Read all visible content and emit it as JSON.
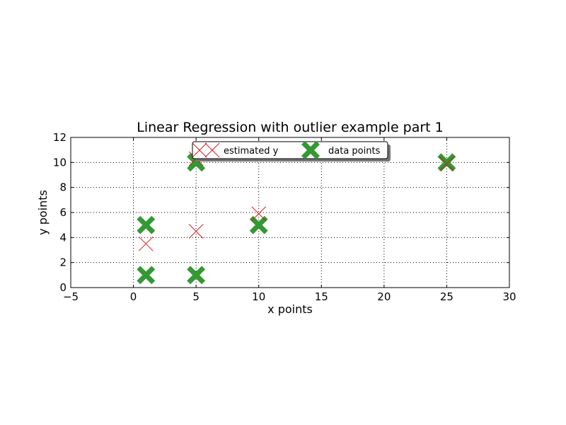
{
  "chart_data": {
    "type": "scatter",
    "title": "Linear Regression with outlier example part 1",
    "xlabel": "x points",
    "ylabel": "y points",
    "xlim": [
      -5,
      30
    ],
    "ylim": [
      0,
      12
    ],
    "xticks": [
      -5,
      0,
      5,
      10,
      15,
      20,
      25,
      30
    ],
    "xtick_labels": [
      "−5",
      "0",
      "5",
      "10",
      "15",
      "20",
      "25",
      "30"
    ],
    "yticks": [
      0,
      2,
      4,
      6,
      8,
      10,
      12
    ],
    "ytick_labels": [
      "0",
      "2",
      "4",
      "6",
      "8",
      "10",
      "12"
    ],
    "grid": true,
    "legend": {
      "placement": "top-center",
      "ncol": 2
    },
    "series": [
      {
        "name": "estimated y",
        "marker": "x",
        "color": "#d62020",
        "points": [
          {
            "x": 1,
            "y": 3.5
          },
          {
            "x": 5,
            "y": 4.5
          },
          {
            "x": 5,
            "y": 10.3
          },
          {
            "x": 10,
            "y": 5.9
          },
          {
            "x": 25,
            "y": 9.9
          }
        ]
      },
      {
        "name": "data points",
        "marker": "X",
        "color": "#339933",
        "points": [
          {
            "x": 1,
            "y": 1
          },
          {
            "x": 1,
            "y": 5
          },
          {
            "x": 5,
            "y": 1
          },
          {
            "x": 5,
            "y": 10
          },
          {
            "x": 10,
            "y": 5
          },
          {
            "x": 25,
            "y": 10
          }
        ]
      }
    ]
  }
}
